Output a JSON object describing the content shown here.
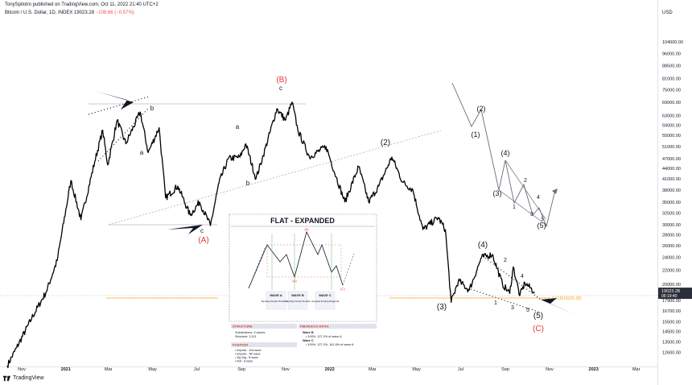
{
  "header": {
    "published": "TonySpilotro published on TradingView.com, Oct 11, 2022 21:40 UTC+2",
    "symbol": "Bitcoin / U.S. Dollar, 1D, INDEX",
    "price": "19023.28",
    "change": "−108.66 (−0.57%)"
  },
  "currency": "USD",
  "brand": "TradingView",
  "colors": {
    "price_line": "#000000",
    "red_label": "#e53935",
    "price_tag": "#2a2e39",
    "fib_line": "#f5a623"
  },
  "chart_data": {
    "type": "line",
    "ylabel": "",
    "xlabel": "",
    "y_scale": "log",
    "ylim": [
      11500,
      128000
    ],
    "y_ticks": [
      "104000.00",
      "96000.00",
      "88500.00",
      "81000.00",
      "75000.00",
      "69000.00",
      "63000.00",
      "59000.00",
      "55000.00",
      "51000.00",
      "47000.00",
      "44000.00",
      "41000.00",
      "38000.00",
      "35000.00",
      "32500.00",
      "30000.00",
      "28000.00",
      "26000.00",
      "24000.00",
      "22000.00",
      "20000.00",
      "17900.00",
      "16700.00",
      "15500.00",
      "14500.00",
      "13500.00",
      "12600.00"
    ],
    "x_ticks": [
      "Nov",
      "2021",
      "Mar",
      "May",
      "Jul",
      "Sep",
      "Nov",
      "2022",
      "Mar",
      "May",
      "Jul",
      "Sep",
      "Nov",
      "2023",
      "Mar"
    ],
    "current_price": "19023.28",
    "countdown": "06:19:40",
    "series": [
      {
        "values": [
          [
            "2020-10-12",
            11500
          ],
          [
            "2020-10-25",
            13000
          ],
          [
            "2020-11-15",
            15900
          ],
          [
            "2020-12-05",
            19000
          ],
          [
            "2020-12-20",
            23500
          ],
          [
            "2021-01-08",
            40500
          ],
          [
            "2021-01-22",
            31000
          ],
          [
            "2021-02-10",
            46000
          ],
          [
            "2021-02-21",
            57000
          ],
          [
            "2021-02-28",
            45000
          ],
          [
            "2021-03-13",
            61000
          ],
          [
            "2021-03-25",
            52000
          ],
          [
            "2021-04-14",
            64500
          ],
          [
            "2021-04-25",
            49000
          ],
          [
            "2021-05-10",
            58000
          ],
          [
            "2021-05-19",
            36000
          ],
          [
            "2021-06-05",
            39000
          ],
          [
            "2021-06-22",
            32000
          ],
          [
            "2021-07-05",
            35000
          ],
          [
            "2021-07-20",
            29800
          ],
          [
            "2021-08-01",
            40000
          ],
          [
            "2021-08-14",
            47000
          ],
          [
            "2021-08-30",
            47500
          ],
          [
            "2021-09-07",
            52000
          ],
          [
            "2021-09-21",
            41000
          ],
          [
            "2021-10-01",
            48000
          ],
          [
            "2021-10-20",
            66000
          ],
          [
            "2021-11-01",
            61000
          ],
          [
            "2021-11-10",
            69000
          ],
          [
            "2021-11-18",
            57000
          ],
          [
            "2021-12-04",
            47500
          ],
          [
            "2021-12-27",
            51000
          ],
          [
            "2022-01-10",
            41500
          ],
          [
            "2022-01-22",
            35000
          ],
          [
            "2022-02-10",
            44500
          ],
          [
            "2022-02-24",
            35000
          ],
          [
            "2022-03-10",
            39000
          ],
          [
            "2022-03-28",
            47500
          ],
          [
            "2022-04-12",
            40000
          ],
          [
            "2022-04-26",
            38000
          ],
          [
            "2022-05-10",
            29000
          ],
          [
            "2022-05-31",
            31500
          ],
          [
            "2022-06-10",
            29000
          ],
          [
            "2022-06-18",
            17700
          ],
          [
            "2022-06-28",
            20500
          ],
          [
            "2022-07-13",
            19200
          ],
          [
            "2022-07-30",
            24000
          ],
          [
            "2022-08-14",
            24500
          ],
          [
            "2022-08-28",
            20000
          ],
          [
            "2022-09-07",
            18800
          ],
          [
            "2022-09-12",
            22500
          ],
          [
            "2022-09-21",
            18500
          ],
          [
            "2022-09-28",
            20200
          ],
          [
            "2022-10-11",
            19023
          ]
        ]
      }
    ],
    "wave_labels": [
      "(B)",
      "c",
      "a",
      "b",
      "a",
      "b",
      "c",
      "(A)",
      "(2)",
      "(3)",
      "(4)",
      "(5)",
      "(C)",
      "1",
      "2",
      "3",
      "4",
      "5"
    ],
    "inset_labels": [
      "(1)",
      "(2)",
      "(3)",
      "(4)",
      "(5)",
      "1",
      "2",
      "3",
      "4",
      "5"
    ],
    "fib_label": "0.618(18325.38)",
    "annotation_box": {
      "title": "FLAT - EXPANDED",
      "waves": [
        {
          "name": "WAVE A",
          "desc": "Zig Zag Family/ Double Flat"
        },
        {
          "name": "WAVE B",
          "desc": "Zig Zag Family/ Double"
        },
        {
          "name": "WAVE C",
          "desc": "Impulse/ Ending Diagonal"
        }
      ],
      "structure_title": "STRUCTURE",
      "structure_lines": [
        "Subdivisions: 3 waves",
        "Structure:    3-3-5"
      ],
      "fib_title": "FIBONACCI RATIO",
      "fib_lines": [
        "Wave B",
        "• 100%, 127.2% of wave A",
        "Wave C",
        "• 100%, 127.2%, 161.8% of wave A"
      ],
      "position_title": "POSITION",
      "position_lines": [
        "• Impulse - 2nd wave",
        "• Impulse - 4th wave",
        "• Zig Zag - B wave",
        "• Flat - A wave"
      ]
    }
  }
}
